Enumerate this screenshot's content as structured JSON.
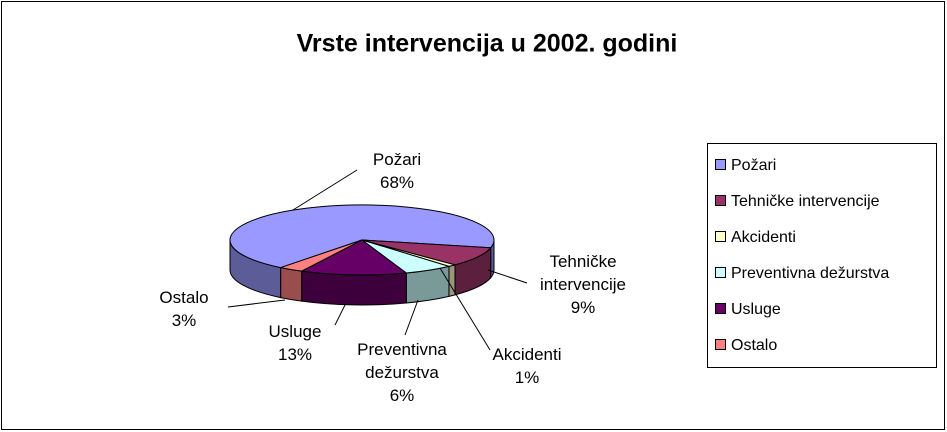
{
  "chart_data": {
    "type": "pie",
    "title": "Vrste intervencija u 2002. godini",
    "categories": [
      "Požari",
      "Tehničke intervencije",
      "Akcidenti",
      "Preventivna dežurstva",
      "Usluge",
      "Ostalo"
    ],
    "values": [
      68,
      9,
      1,
      6,
      13,
      3
    ],
    "value_labels": [
      "68%",
      "9%",
      "1%",
      "6%",
      "13%",
      "3%"
    ],
    "colors": [
      "#9999ff",
      "#993366",
      "#ffffcc",
      "#ccffff",
      "#660066",
      "#ff8080"
    ],
    "legend": "right"
  }
}
